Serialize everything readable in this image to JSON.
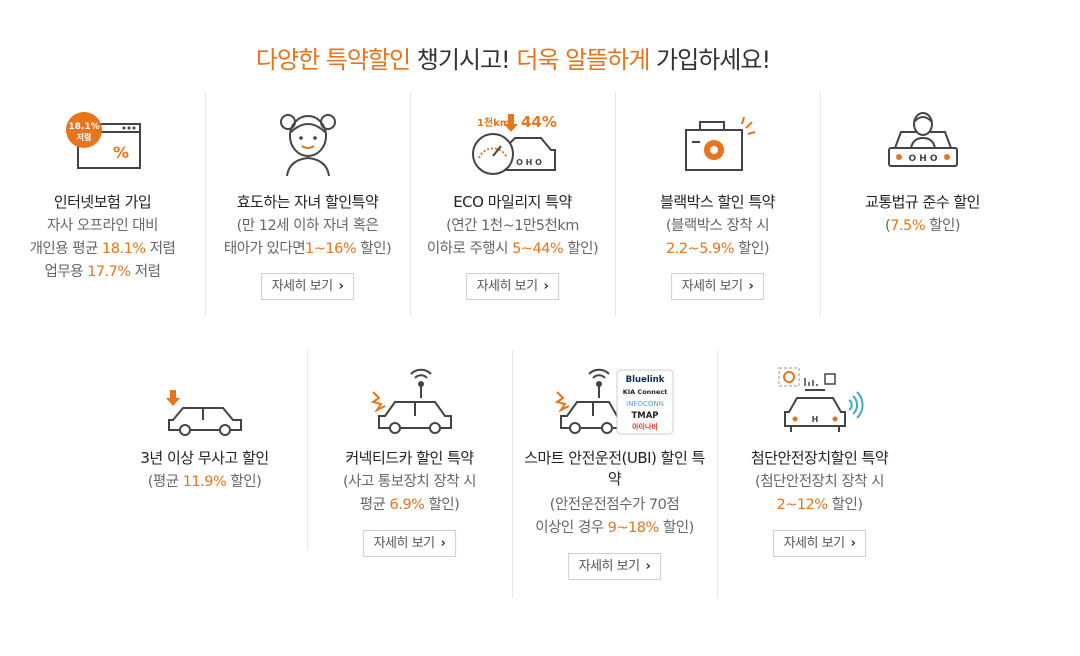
{
  "headline": {
    "part1": "다양한 특약할인",
    "part2": " 챙기시고! ",
    "part3": "더욱 알뜰하게",
    "part4": " 가입하세요!"
  },
  "detail_label": "자세히 보기",
  "icon_text": {
    "internet_badge_pct": "18.1%",
    "internet_badge_word": "저렴",
    "internet_percent": "%",
    "eco_km": "1천km",
    "eco_pct": "44%",
    "car_plate": "O H O",
    "brand_bluelink": "Bluelink",
    "brand_kia": "KIA Connect",
    "brand_infoconn": "INFOCONN",
    "brand_tmap": "TMAP",
    "brand_inavi": "아이나비"
  },
  "items": [
    {
      "title": "인터넷보험 가입",
      "desc1": "자사 오프라인 대비",
      "desc2a": "개인용 평균 ",
      "desc2b": "18.1%",
      "desc2c": " 저렴",
      "desc3a": "업무용 ",
      "desc3b": "17.7%",
      "desc3c": " 저렴"
    },
    {
      "title": "효도하는 자녀 할인특약",
      "desc1": "(만 12세 이하 자녀 혹은",
      "desc2a": "태아가 있다면",
      "desc2b": "1~16%",
      "desc2c": " 할인)"
    },
    {
      "title": "ECO 마일리지 특약",
      "desc1": "(연간 1천~1만5천km",
      "desc2a": "이하로 주행시 ",
      "desc2b": "5~44%",
      "desc2c": " 할인)"
    },
    {
      "title": "블랙박스 할인 특약",
      "desc1": "(블랙박스 장착 시",
      "desc2b": "2.2~5.9%",
      "desc2c": " 할인)"
    },
    {
      "title": "교통법규 준수 할인",
      "desc1a": "(",
      "desc1b": "7.5%",
      "desc1c": " 할인)"
    },
    {
      "title": "3년 이상 무사고 할인",
      "desc1a": "(평균 ",
      "desc1b": "11.9%",
      "desc1c": " 할인)"
    },
    {
      "title": "커넥티드카 할인 특약",
      "desc1": "(사고 통보장치 장착 시",
      "desc2a": "평균 ",
      "desc2b": "6.9%",
      "desc2c": " 할인)"
    },
    {
      "title1": "스마트 안전운전(UBI) 할인 특",
      "title2": "약",
      "desc1": "(안전운전점수가 70점",
      "desc2a": "이상인 경우 ",
      "desc2b": "9~18%",
      "desc2c": " 할인)"
    },
    {
      "title": "첨단안전장치할인 특약",
      "desc1": "(첨단안전장치 장착 시",
      "desc2b": "2~12%",
      "desc2c": " 할인)"
    }
  ],
  "colors": {
    "accent": "#e8741c",
    "text": "#333333",
    "muted": "#666666",
    "border": "#cfcfcf"
  }
}
